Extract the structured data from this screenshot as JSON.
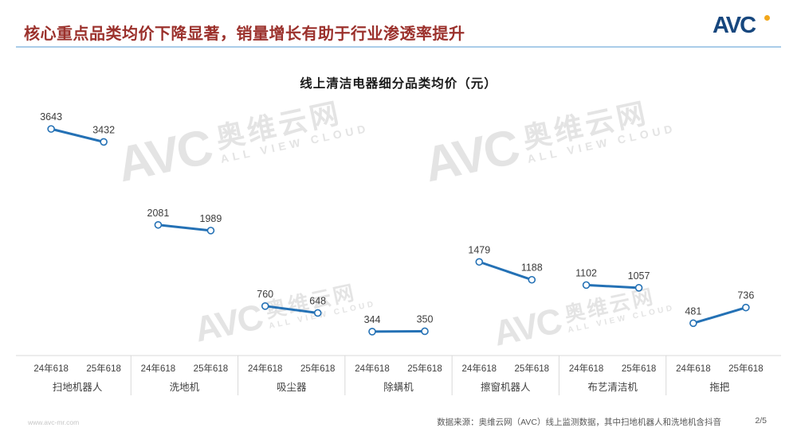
{
  "header": {
    "title": "核心重点品类均价下降显著，销量增长有助于行业渗透率提升",
    "title_color": "#9B312C",
    "underline_color": "#A9CCE9",
    "logo_text": "AVC",
    "logo_color": "#17477E",
    "logo_dot_color": "#F2A71B"
  },
  "chart_data": {
    "type": "line",
    "title": "线上清洁电器细分品类均价（元）",
    "categories": [
      "扫地机器人",
      "洗地机",
      "吸尘器",
      "除螨机",
      "擦窗机器人",
      "布艺清洁机",
      "拖把"
    ],
    "x_sublabels": [
      "24年618",
      "25年618"
    ],
    "series": [
      {
        "name": "均价",
        "values": [
          [
            3643,
            3432
          ],
          [
            2081,
            1989
          ],
          [
            760,
            648
          ],
          [
            344,
            350
          ],
          [
            1479,
            1188
          ],
          [
            1102,
            1057
          ],
          [
            481,
            736
          ]
        ]
      }
    ],
    "ylim": [
      0,
      3800
    ],
    "grid": false,
    "legend": "none",
    "line_color": "#2471B5",
    "marker_fill": "#FFFFFF",
    "axis_color": "#D9D9D9",
    "value_label_color": "#3C3C3C",
    "tick_label_color": "#404040"
  },
  "watermark": {
    "logo": "AVC",
    "cn": "奥维云网",
    "en": "ALL VIEW CLOUD"
  },
  "footer": {
    "website": "www.avc-mr.com",
    "source": "数据来源：奥维云网（AVC）线上监测数据，其中扫地机器人和洗地机含抖音",
    "page": "2/5"
  }
}
